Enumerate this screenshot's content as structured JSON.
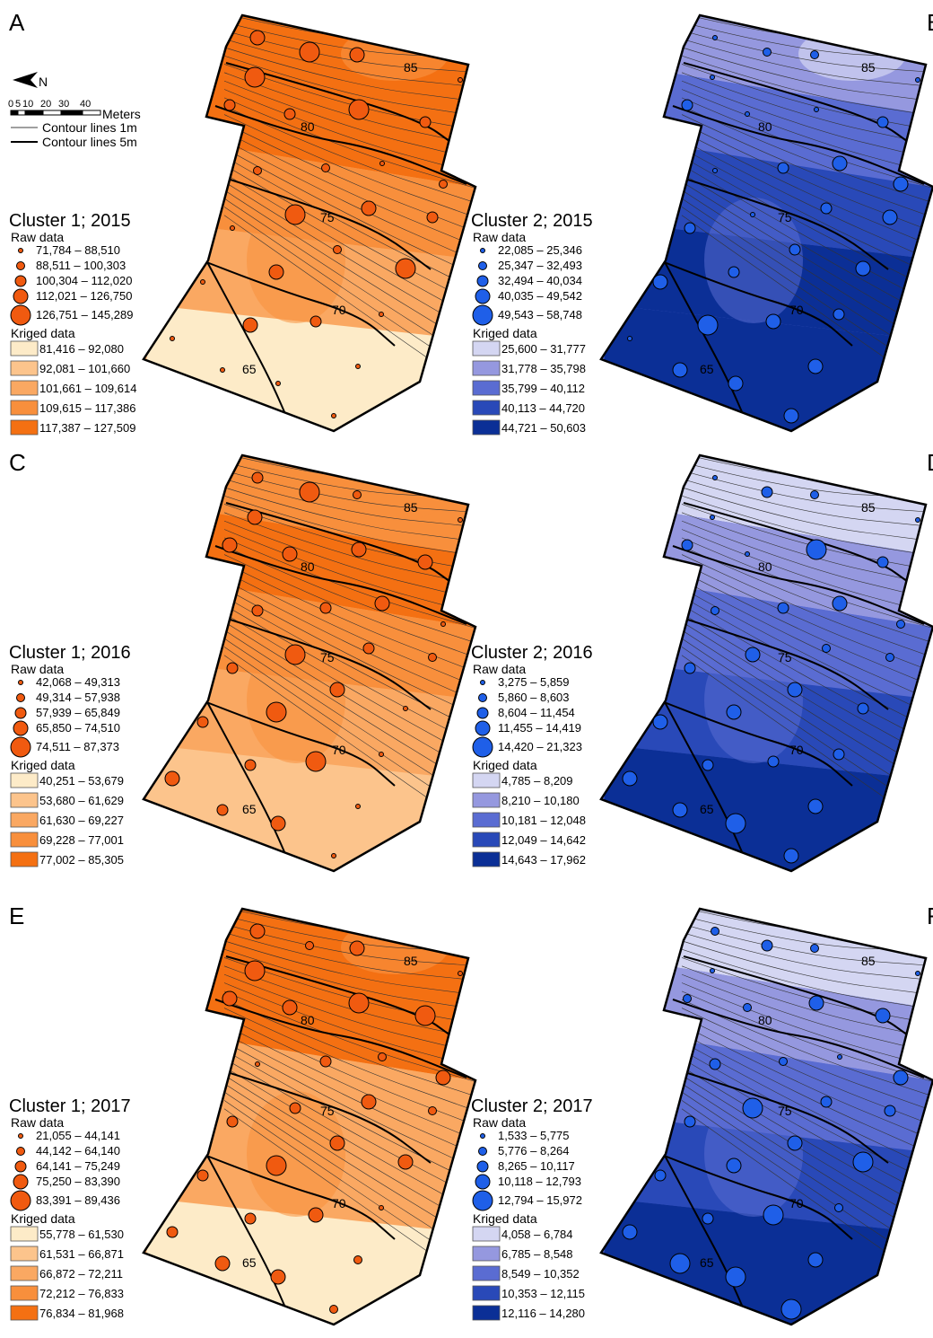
{
  "scale_bar": {
    "north_label": "N",
    "ticks": [
      "0",
      "5",
      "10",
      "20",
      "30",
      "40"
    ],
    "unit": "Meters",
    "contour_1m": "Contour lines 1m",
    "contour_5m": "Contour lines 5m"
  },
  "contour_labels": [
    "85",
    "80",
    "75",
    "70",
    "65"
  ],
  "raw_header": "Raw data",
  "kriged_header": "Kriged data",
  "orange_palette": [
    "#fdebc8",
    "#fcc48c",
    "#faa862",
    "#f88f3c",
    "#f47012"
  ],
  "blue_palette": [
    "#d4d6f2",
    "#9598df",
    "#5a6cd2",
    "#2949b8",
    "#0b2f96"
  ],
  "panels": [
    {
      "letter": "A",
      "title": "Cluster 1; 2015",
      "color": "orange",
      "raw": [
        "71,784 – 88,510",
        "88,511 – 100,303",
        "100,304 – 112,020",
        "112,021 – 126,750",
        "126,751 – 145,289"
      ],
      "kriged": [
        "81,416 – 92,080",
        "92,081 – 101,660",
        "101,661 – 109,614",
        "109,615 – 117,386",
        "117,387 – 127,509"
      ]
    },
    {
      "letter": "B",
      "title": "Cluster 2; 2015",
      "color": "blue",
      "raw": [
        "22,085 – 25,346",
        "25,347 – 32,493",
        "32,494 – 40,034",
        "40,035 – 49,542",
        "49,543 – 58,748"
      ],
      "kriged": [
        "25,600 – 31,777",
        "31,778 – 35,798",
        "35,799 – 40,112",
        "40,113 – 44,720",
        "44,721 – 50,603"
      ]
    },
    {
      "letter": "C",
      "title": "Cluster 1; 2016",
      "color": "orange",
      "raw": [
        "42,068 – 49,313",
        "49,314 – 57,938",
        "57,939 – 65,849",
        "65,850 – 74,510",
        "74,511 – 87,373"
      ],
      "kriged": [
        "40,251 – 53,679",
        "53,680 – 61,629",
        "61,630 – 69,227",
        "69,228 – 77,001",
        "77,002 – 85,305"
      ]
    },
    {
      "letter": "D",
      "title": "Cluster 2; 2016",
      "color": "blue",
      "raw": [
        "3,275 – 5,859",
        "5,860 – 8,603",
        "8,604 – 11,454",
        "11,455 – 14,419",
        "14,420 – 21,323"
      ],
      "kriged": [
        "4,785 – 8,209",
        "8,210 – 10,180",
        "10,181 – 12,048",
        "12,049 – 14,642",
        "14,643 – 17,962"
      ]
    },
    {
      "letter": "E",
      "title": "Cluster 1; 2017",
      "color": "orange",
      "raw": [
        "21,055 – 44,141",
        "44,142 – 64,140",
        "64,141 – 75,249",
        "75,250 – 83,390",
        "83,391 – 89,436"
      ],
      "kriged": [
        "55,778 – 61,530",
        "61,531 – 66,871",
        "66,872 – 72,211",
        "72,212 – 76,833",
        "76,834 – 81,968"
      ]
    },
    {
      "letter": "F",
      "title": "Cluster 2; 2017",
      "color": "blue",
      "raw": [
        "1,533 – 5,775",
        "5,776 – 8,264",
        "8,265 – 10,117",
        "10,118 – 12,793",
        "12,794 – 15,972"
      ],
      "kriged": [
        "4,058 – 6,784",
        "6,785 – 8,548",
        "8,549 – 10,352",
        "10,353 – 12,115",
        "12,116 – 14,280"
      ]
    }
  ]
}
